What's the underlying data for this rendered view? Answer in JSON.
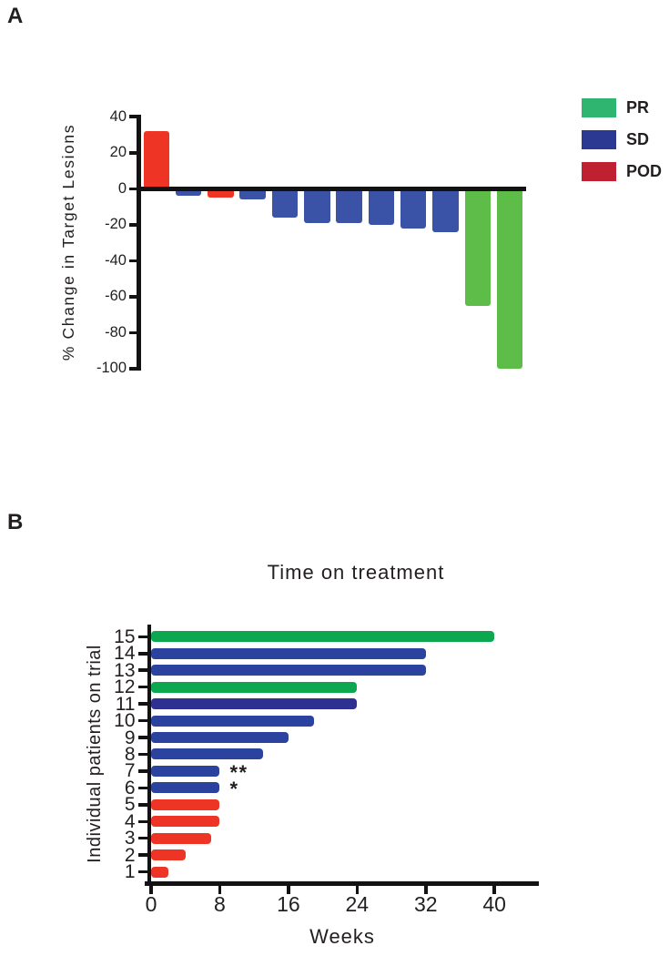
{
  "panels": {
    "a": {
      "label": "A",
      "ylabel": "% Change in Target Lesions"
    },
    "b": {
      "label": "B",
      "title": "Time on treatment",
      "xlabel": "Weeks",
      "ylabel": "Individual patients on trial"
    }
  },
  "legend": {
    "items": [
      {
        "label": "PR"
      },
      {
        "label": "SD"
      },
      {
        "label": "POD"
      }
    ]
  },
  "colors": {
    "legend": {
      "PR": "#30B571",
      "SD": "#2B3992",
      "POD": "#C02130"
    },
    "panel_a": {
      "PR": "#5EBC49",
      "SD": "#3A53A6",
      "POD": "#EE3425"
    },
    "panel_b": {
      "PR": "#0DA750",
      "SD": "#2B429F",
      "POD": "#EE3425"
    },
    "panel_b_sd_dark": "#2E3192",
    "axis": "#121212"
  },
  "chart_data": [
    {
      "type": "bar",
      "panel": "A",
      "ylabel": "% Change in Target Lesions",
      "ylim": [
        -100,
        40
      ],
      "yticks": [
        40,
        20,
        0,
        -20,
        -40,
        -60,
        -80,
        -100
      ],
      "values": [
        32,
        -4,
        -5,
        -6,
        -16,
        -19,
        -19,
        -20,
        -22,
        -24,
        -65,
        -100
      ],
      "groups": [
        "POD",
        "SD",
        "POD",
        "SD",
        "SD",
        "SD",
        "SD",
        "SD",
        "SD",
        "SD",
        "PR",
        "PR"
      ],
      "legend_entries": [
        "PR",
        "SD",
        "POD"
      ],
      "legend_position": "right",
      "grid": false
    },
    {
      "type": "bar",
      "panel": "B",
      "orientation": "horizontal",
      "title": "Time on treatment",
      "xlabel": "Weeks",
      "ylabel": "Individual patients on trial",
      "xlim": [
        0,
        45
      ],
      "xticks": [
        0,
        8,
        16,
        24,
        32,
        40
      ],
      "categories": [
        1,
        2,
        3,
        4,
        5,
        6,
        7,
        8,
        9,
        10,
        11,
        12,
        13,
        14,
        15
      ],
      "values": [
        2,
        4,
        7,
        8,
        8,
        8,
        8,
        13,
        16,
        19,
        24,
        24,
        32,
        32,
        40
      ],
      "groups": [
        "POD",
        "POD",
        "POD",
        "POD",
        "POD",
        "SD",
        "SD",
        "SD",
        "SD",
        "SD",
        "SD",
        "PR",
        "SD",
        "SD",
        "PR"
      ],
      "dark_sd_patients": [
        11
      ],
      "annotations": [
        {
          "patient": 7,
          "text": "**"
        },
        {
          "patient": 6,
          "text": "*"
        }
      ],
      "grid": false
    }
  ]
}
